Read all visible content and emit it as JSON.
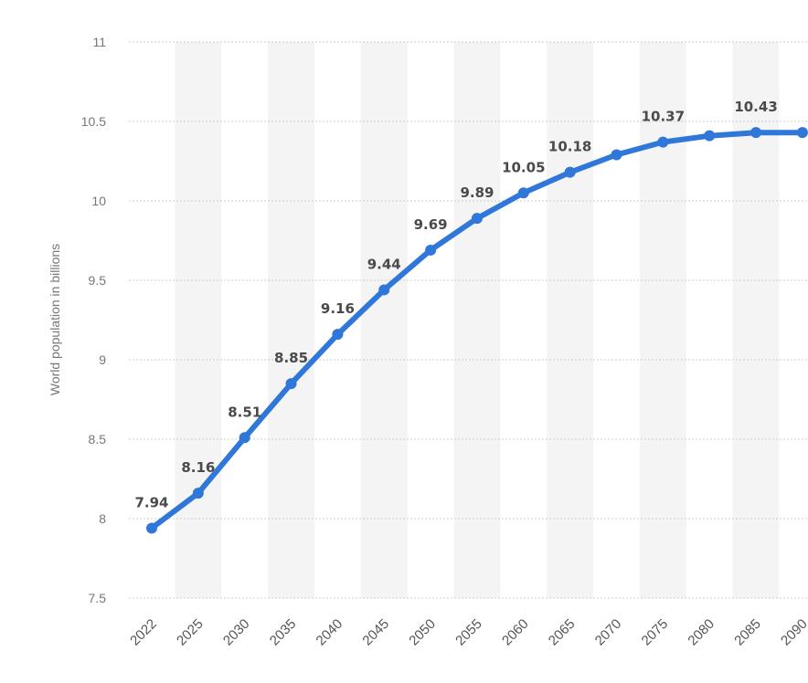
{
  "chart_data": {
    "type": "line",
    "x": [
      "2022",
      "2025",
      "2030",
      "2035",
      "2040",
      "2045",
      "2050",
      "2055",
      "2060",
      "2065",
      "2070",
      "2075",
      "2080",
      "2085",
      "2090"
    ],
    "series": [
      {
        "values": [
          7.94,
          8.16,
          8.51,
          8.85,
          9.16,
          9.44,
          9.69,
          9.89,
          10.05,
          10.18,
          10.29,
          10.37,
          10.41,
          10.43,
          10.43
        ]
      }
    ],
    "data_labels": [
      "7.94",
      "8.16",
      "8.51",
      "8.85",
      "9.16",
      "9.44",
      "9.69",
      "9.89",
      "10.05",
      "10.18",
      "",
      "10.37",
      "",
      "10.43",
      ""
    ],
    "yticks": [
      "7.5",
      "8",
      "8.5",
      "9",
      "9.5",
      "10",
      "10.5",
      "11"
    ],
    "ylim": [
      7.5,
      11
    ],
    "xlabel": "",
    "ylabel": "World population in billions",
    "grid": "horizontal dotted",
    "line_color": "#2f77d9",
    "band_color": "#f4f4f4",
    "grid_color": "#cccccc"
  }
}
